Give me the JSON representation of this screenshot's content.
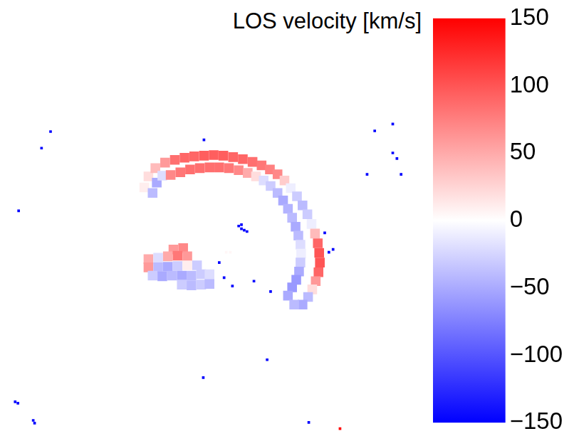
{
  "chart_data": {
    "type": "heatmap",
    "tick_labels": false,
    "grid": false,
    "xlim": [
      0,
      600
    ],
    "ylim": [
      0,
      620
    ],
    "series": [
      {
        "marker": "square",
        "values": [
          [
            198,
            358,
            10
          ],
          [
            204,
            374,
            20
          ],
          [
            214,
            386,
            40
          ],
          [
            210,
            350,
            -40
          ],
          [
            216,
            365,
            -50
          ],
          [
            224,
            375,
            -20
          ],
          [
            228,
            394,
            60
          ],
          [
            242,
            398,
            85
          ],
          [
            256,
            401,
            90
          ],
          [
            270,
            403,
            90
          ],
          [
            284,
            404,
            95
          ],
          [
            298,
            405,
            95
          ],
          [
            312,
            404,
            95
          ],
          [
            326,
            402,
            90
          ],
          [
            340,
            399,
            90
          ],
          [
            354,
            395,
            85
          ],
          [
            367,
            390,
            80
          ],
          [
            379,
            384,
            75
          ],
          [
            236,
            376,
            70
          ],
          [
            250,
            380,
            80
          ],
          [
            264,
            384,
            85
          ],
          [
            278,
            386,
            85
          ],
          [
            292,
            387,
            85
          ],
          [
            306,
            387,
            85
          ],
          [
            320,
            386,
            80
          ],
          [
            334,
            383,
            70
          ],
          [
            347,
            379,
            50
          ],
          [
            359,
            374,
            20
          ],
          [
            370,
            368,
            -20
          ],
          [
            390,
            377,
            70
          ],
          [
            400,
            368,
            30
          ],
          [
            409,
            357,
            -10
          ],
          [
            418,
            345,
            -30
          ],
          [
            426,
            332,
            -40
          ],
          [
            433,
            319,
            -30
          ],
          [
            439,
            305,
            -10
          ],
          [
            444,
            291,
            40
          ],
          [
            448,
            277,
            90
          ],
          [
            450,
            263,
            100
          ],
          [
            451,
            249,
            100
          ],
          [
            449,
            235,
            90
          ],
          [
            445,
            222,
            60
          ],
          [
            380,
            360,
            -30
          ],
          [
            390,
            350,
            -40
          ],
          [
            398,
            339,
            -50
          ],
          [
            405,
            327,
            -45
          ],
          [
            411,
            314,
            -40
          ],
          [
            416,
            301,
            -50
          ],
          [
            420,
            288,
            -40
          ],
          [
            423,
            275,
            -20
          ],
          [
            424,
            262,
            -10
          ],
          [
            423,
            249,
            -30
          ],
          [
            421,
            236,
            -50
          ],
          [
            417,
            224,
            -60
          ],
          [
            440,
            210,
            20
          ],
          [
            434,
            199,
            -40
          ],
          [
            426,
            188,
            -50
          ],
          [
            411,
            213,
            -60
          ],
          [
            405,
            201,
            -50
          ],
          [
            414,
            188,
            -40
          ],
          [
            240,
            268,
            60
          ],
          [
            254,
            270,
            70
          ],
          [
            204,
            254,
            50
          ],
          [
            218,
            256,
            -20
          ],
          [
            232,
            258,
            50
          ],
          [
            246,
            259,
            80
          ],
          [
            260,
            258,
            60
          ],
          [
            204,
            242,
            60
          ],
          [
            218,
            242,
            -40
          ],
          [
            232,
            243,
            -50
          ],
          [
            246,
            244,
            -30
          ],
          [
            260,
            245,
            10
          ],
          [
            274,
            245,
            -30
          ],
          [
            210,
            230,
            -30
          ],
          [
            224,
            229,
            -50
          ],
          [
            238,
            230,
            -40
          ],
          [
            252,
            230,
            -50
          ],
          [
            266,
            230,
            -40
          ],
          [
            280,
            232,
            -30
          ],
          [
            292,
            232,
            -20
          ],
          [
            252,
            217,
            -30
          ],
          [
            266,
            216,
            -40
          ],
          [
            280,
            217,
            -30
          ],
          [
            292,
            218,
            -40
          ]
        ]
      },
      {
        "marker": "point",
        "values": [
          [
            334,
            302,
            -150
          ],
          [
            338,
            298,
            -150
          ],
          [
            342,
            296,
            -150
          ],
          [
            346,
            294,
            -150
          ],
          [
            338,
            304,
            -150
          ],
          [
            322,
            264,
            5
          ],
          [
            316,
            264,
            5
          ],
          [
            63,
            439,
            -150
          ],
          [
            50,
            415,
            -150
          ],
          [
            17,
            324,
            -150
          ],
          [
            284,
            427,
            -150
          ],
          [
            556,
            450,
            -150
          ],
          [
            556,
            408,
            -150
          ],
          [
            562,
            400,
            -150
          ],
          [
            530,
            440,
            -150
          ],
          [
            519,
            377,
            -150
          ],
          [
            568,
            377,
            -150
          ],
          [
            464,
            264,
            -150
          ],
          [
            470,
            268,
            -150
          ],
          [
            458,
            292,
            -150
          ],
          [
            356,
            222,
            -150
          ],
          [
            380,
            207,
            -150
          ],
          [
            325,
            215,
            -150
          ],
          [
            313,
            227,
            -150
          ],
          [
            306,
            249,
            -150
          ],
          [
            283,
            82,
            -150
          ],
          [
            375,
            108,
            -150
          ],
          [
            435,
            17,
            -150
          ],
          [
            38,
            20,
            -150
          ],
          [
            12,
            47,
            -150
          ],
          [
            16,
            45,
            -150
          ],
          [
            40,
            16,
            -150
          ],
          [
            480,
            8,
            150
          ]
        ]
      }
    ],
    "colorbar": {
      "label": "LOS velocity [km/s]",
      "range": [
        -150,
        150
      ],
      "ticks": [
        {
          "value": -150,
          "label": "−150"
        },
        {
          "value": -100,
          "label": "−100"
        },
        {
          "value": -50,
          "label": "−50"
        },
        0,
        50,
        100,
        150
      ]
    }
  }
}
